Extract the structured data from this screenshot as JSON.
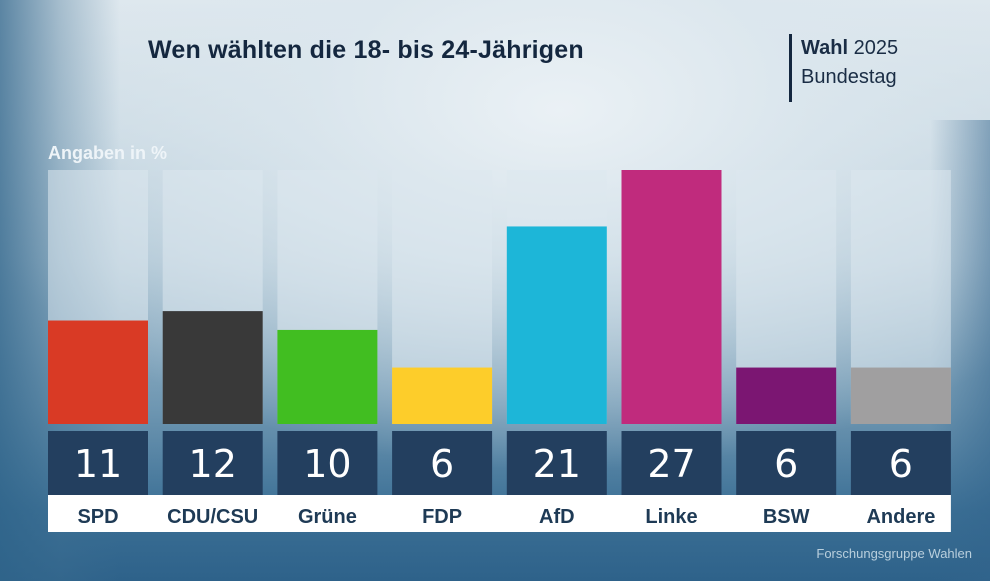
{
  "header": {
    "title": "Wen wählten die 18- bis 24-Jährigen",
    "badge_bold": "Wahl",
    "badge_year": "2025",
    "badge_sub": "Bundestag"
  },
  "source": "Forschungsgruppe Wahlen",
  "chart_data": {
    "type": "bar",
    "title": "Wen wählten die 18- bis 24-Jährigen",
    "subtitle": "Angaben in %",
    "xlabel": "",
    "ylabel": "Angaben in %",
    "ylim": [
      0,
      27
    ],
    "grid": false,
    "legend": "none",
    "categories": [
      "SPD",
      "CDU/CSU",
      "Grüne",
      "FDP",
      "AfD",
      "Linke",
      "BSW",
      "Andere"
    ],
    "values": [
      11,
      12,
      10,
      6,
      21,
      27,
      6,
      6
    ],
    "colors": [
      "#d93a25",
      "#393939",
      "#41be21",
      "#fdcd2a",
      "#1db6d8",
      "#c02b7d",
      "#7b1672",
      "#a09fa0"
    ],
    "value_labels": [
      "11",
      "12",
      "10",
      "6",
      "21",
      "27",
      "6",
      "6"
    ]
  },
  "theme": {
    "track_color": "#dce7ee",
    "value_box_color": "#233f5f",
    "value_text_color": "#ffffff",
    "label_strip_color": "#ffffff",
    "label_text_color": "#1e3a55"
  }
}
